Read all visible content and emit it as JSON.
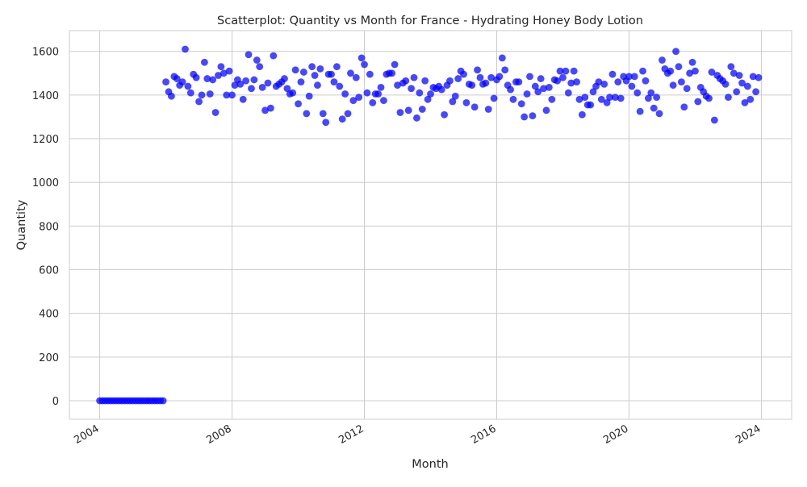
{
  "chart_data": {
    "type": "scatter",
    "title": "Scatterplot: Quantity vs Month for France - Hydrating Honey Body Lotion",
    "xlabel": "Month",
    "ylabel": "Quantity",
    "x_start": "2004-01",
    "x_end": "2023-12",
    "xlim": [
      "2003-02",
      "2024-12"
    ],
    "ylim": [
      -85,
      1695
    ],
    "x_ticks": [
      "2004",
      "2008",
      "2012",
      "2016",
      "2020",
      "2024"
    ],
    "y_ticks": [
      0,
      200,
      400,
      600,
      800,
      1000,
      1200,
      1400,
      1600
    ],
    "grid": true,
    "legend": "none",
    "marker_color": "#0000ff",
    "values": [
      0,
      0,
      0,
      0,
      0,
      0,
      0,
      0,
      0,
      0,
      0,
      0,
      0,
      0,
      0,
      0,
      0,
      0,
      0,
      0,
      0,
      0,
      0,
      0,
      1460,
      1415,
      1395,
      1485,
      1475,
      1445,
      1460,
      1610,
      1440,
      1410,
      1495,
      1480,
      1370,
      1400,
      1550,
      1475,
      1405,
      1470,
      1320,
      1490,
      1530,
      1500,
      1400,
      1510,
      1400,
      1445,
      1470,
      1450,
      1380,
      1465,
      1585,
      1430,
      1470,
      1560,
      1530,
      1435,
      1330,
      1455,
      1340,
      1580,
      1440,
      1450,
      1460,
      1475,
      1430,
      1405,
      1410,
      1515,
      1360,
      1460,
      1505,
      1315,
      1395,
      1530,
      1490,
      1445,
      1520,
      1315,
      1275,
      1495,
      1495,
      1460,
      1530,
      1440,
      1290,
      1405,
      1315,
      1500,
      1375,
      1480,
      1390,
      1570,
      1540,
      1410,
      1495,
      1365,
      1405,
      1405,
      1435,
      1375,
      1495,
      1500,
      1500,
      1540,
      1445,
      1320,
      1455,
      1465,
      1330,
      1430,
      1480,
      1295,
      1410,
      1335,
      1465,
      1380,
      1405,
      1435,
      1430,
      1440,
      1425,
      1310,
      1445,
      1465,
      1370,
      1395,
      1475,
      1510,
      1495,
      1365,
      1450,
      1445,
      1345,
      1515,
      1480,
      1450,
      1455,
      1335,
      1480,
      1385,
      1470,
      1485,
      1570,
      1515,
      1445,
      1425,
      1380,
      1460,
      1460,
      1360,
      1300,
      1405,
      1485,
      1305,
      1440,
      1415,
      1475,
      1430,
      1330,
      1435,
      1380,
      1470,
      1465,
      1510,
      1480,
      1510,
      1410,
      1455,
      1510,
      1460,
      1380,
      1310,
      1390,
      1355,
      1355,
      1415,
      1440,
      1460,
      1380,
      1450,
      1365,
      1390,
      1495,
      1390,
      1460,
      1385,
      1485,
      1465,
      1485,
      1440,
      1485,
      1410,
      1325,
      1510,
      1465,
      1385,
      1410,
      1340,
      1390,
      1315,
      1560,
      1520,
      1500,
      1510,
      1445,
      1600,
      1530,
      1460,
      1345,
      1430,
      1500,
      1550,
      1510,
      1370,
      1435,
      1415,
      1395,
      1385,
      1505,
      1285,
      1490,
      1475,
      1465,
      1450,
      1390,
      1530,
      1500,
      1415,
      1490,
      1455,
      1365,
      1440,
      1380,
      1485,
      1415,
      1480
    ]
  }
}
